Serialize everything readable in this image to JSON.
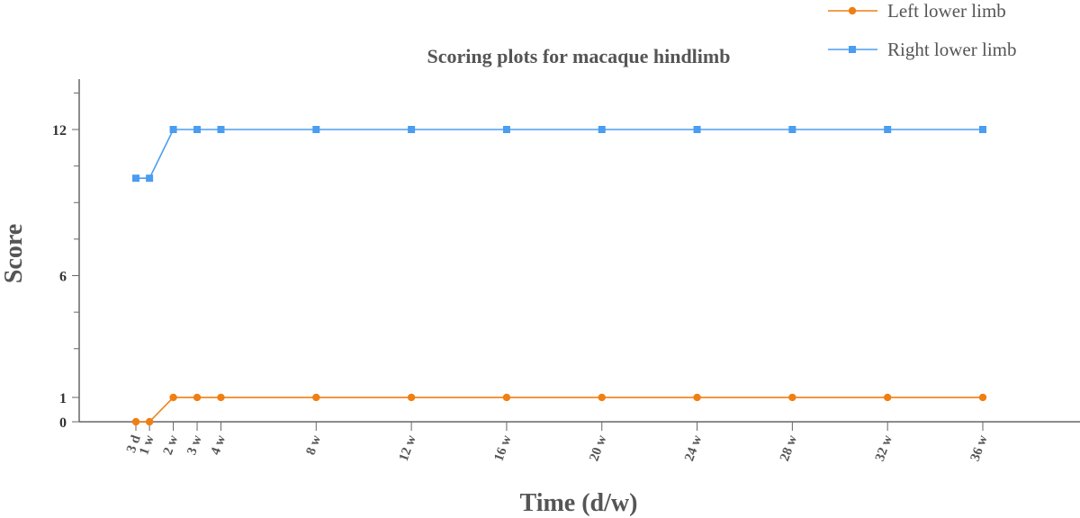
{
  "chart_data": {
    "type": "line",
    "title": "Scoring plots for macaque hindlimb",
    "xlabel": "Time (d/w)",
    "ylabel": "Score",
    "x_positions": [
      0.4286,
      1,
      2,
      3,
      4,
      8,
      12,
      16,
      20,
      24,
      28,
      32,
      36
    ],
    "categories": [
      "3 d",
      "1 w",
      "2 w",
      "3 w",
      "4 w",
      "8 w",
      "12 w",
      "16 w",
      "20 w",
      "24 w",
      "28 w",
      "32 w",
      "36 w"
    ],
    "yticks_labeled": [
      0,
      1,
      6,
      12
    ],
    "yticks_minor": [
      3,
      4.5,
      7.5,
      9,
      10.5,
      13.5
    ],
    "ylim": [
      0,
      14
    ],
    "xlim": [
      -2,
      40
    ],
    "legend_position": "top-right",
    "grid": false,
    "series": [
      {
        "name": "Left lower limb",
        "color": "#f07f13",
        "marker": "circle",
        "values": [
          0,
          0,
          1,
          1,
          1,
          1,
          1,
          1,
          1,
          1,
          1,
          1,
          1
        ]
      },
      {
        "name": "Right lower limb",
        "color": "#4a9df0",
        "marker": "square",
        "values": [
          10,
          10,
          12,
          12,
          12,
          12,
          12,
          12,
          12,
          12,
          12,
          12,
          12
        ]
      }
    ]
  }
}
